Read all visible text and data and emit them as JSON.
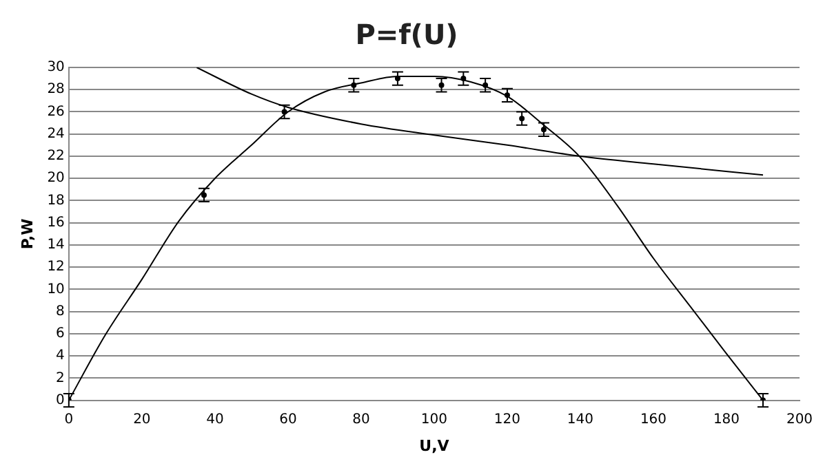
{
  "chart_data": {
    "type": "scatter",
    "title": "P=f(U)",
    "xlabel": "U,V",
    "ylabel": "P,W",
    "xlim": [
      0,
      200
    ],
    "xticks": [
      0,
      20,
      40,
      60,
      80,
      100,
      120,
      140,
      160,
      180,
      200
    ],
    "ylim": [
      0,
      30
    ],
    "yticks": [
      0,
      2,
      4,
      6,
      8,
      10,
      12,
      14,
      16,
      18,
      20,
      22,
      24,
      26,
      28,
      30
    ],
    "grid": "y",
    "legend": false,
    "line_style": "solid",
    "series": [
      {
        "color": "#000000",
        "marker": "circle",
        "x": [
          0,
          37,
          59,
          78,
          90,
          102,
          108,
          114,
          120,
          124,
          130,
          190
        ],
        "values": [
          0,
          18.5,
          26,
          28.4,
          29,
          28.4,
          29,
          28.4,
          27.5,
          25.4,
          24.4,
          0
        ],
        "errors": [
          0.6,
          0.6,
          0.6,
          0.6,
          0.6,
          0.6,
          0.6,
          0.6,
          0.6,
          0.6,
          0.6,
          0.6
        ]
      },
      {
        "type": "line",
        "marker": "none",
        "color": "#000000",
        "x": [
          0,
          10,
          20,
          30,
          40,
          50,
          60,
          70,
          80,
          90,
          100,
          110,
          120,
          130,
          140,
          150,
          160,
          170,
          180,
          190
        ],
        "values": [
          0,
          5.9,
          10.9,
          16.1,
          20,
          23,
          26,
          27.8,
          28.6,
          29.2,
          29.2,
          28.7,
          27.4,
          24.8,
          21.9,
          17.6,
          12.8,
          8.5,
          4.2,
          0
        ]
      },
      {
        "type": "line",
        "marker": "none",
        "color": "#000000",
        "x": [
          35,
          50,
          60,
          80,
          100,
          120,
          140,
          160,
          190
        ],
        "values": [
          30,
          27.6,
          26.4,
          24.9,
          23.9,
          23,
          22,
          21.3,
          20.3
        ]
      }
    ]
  }
}
